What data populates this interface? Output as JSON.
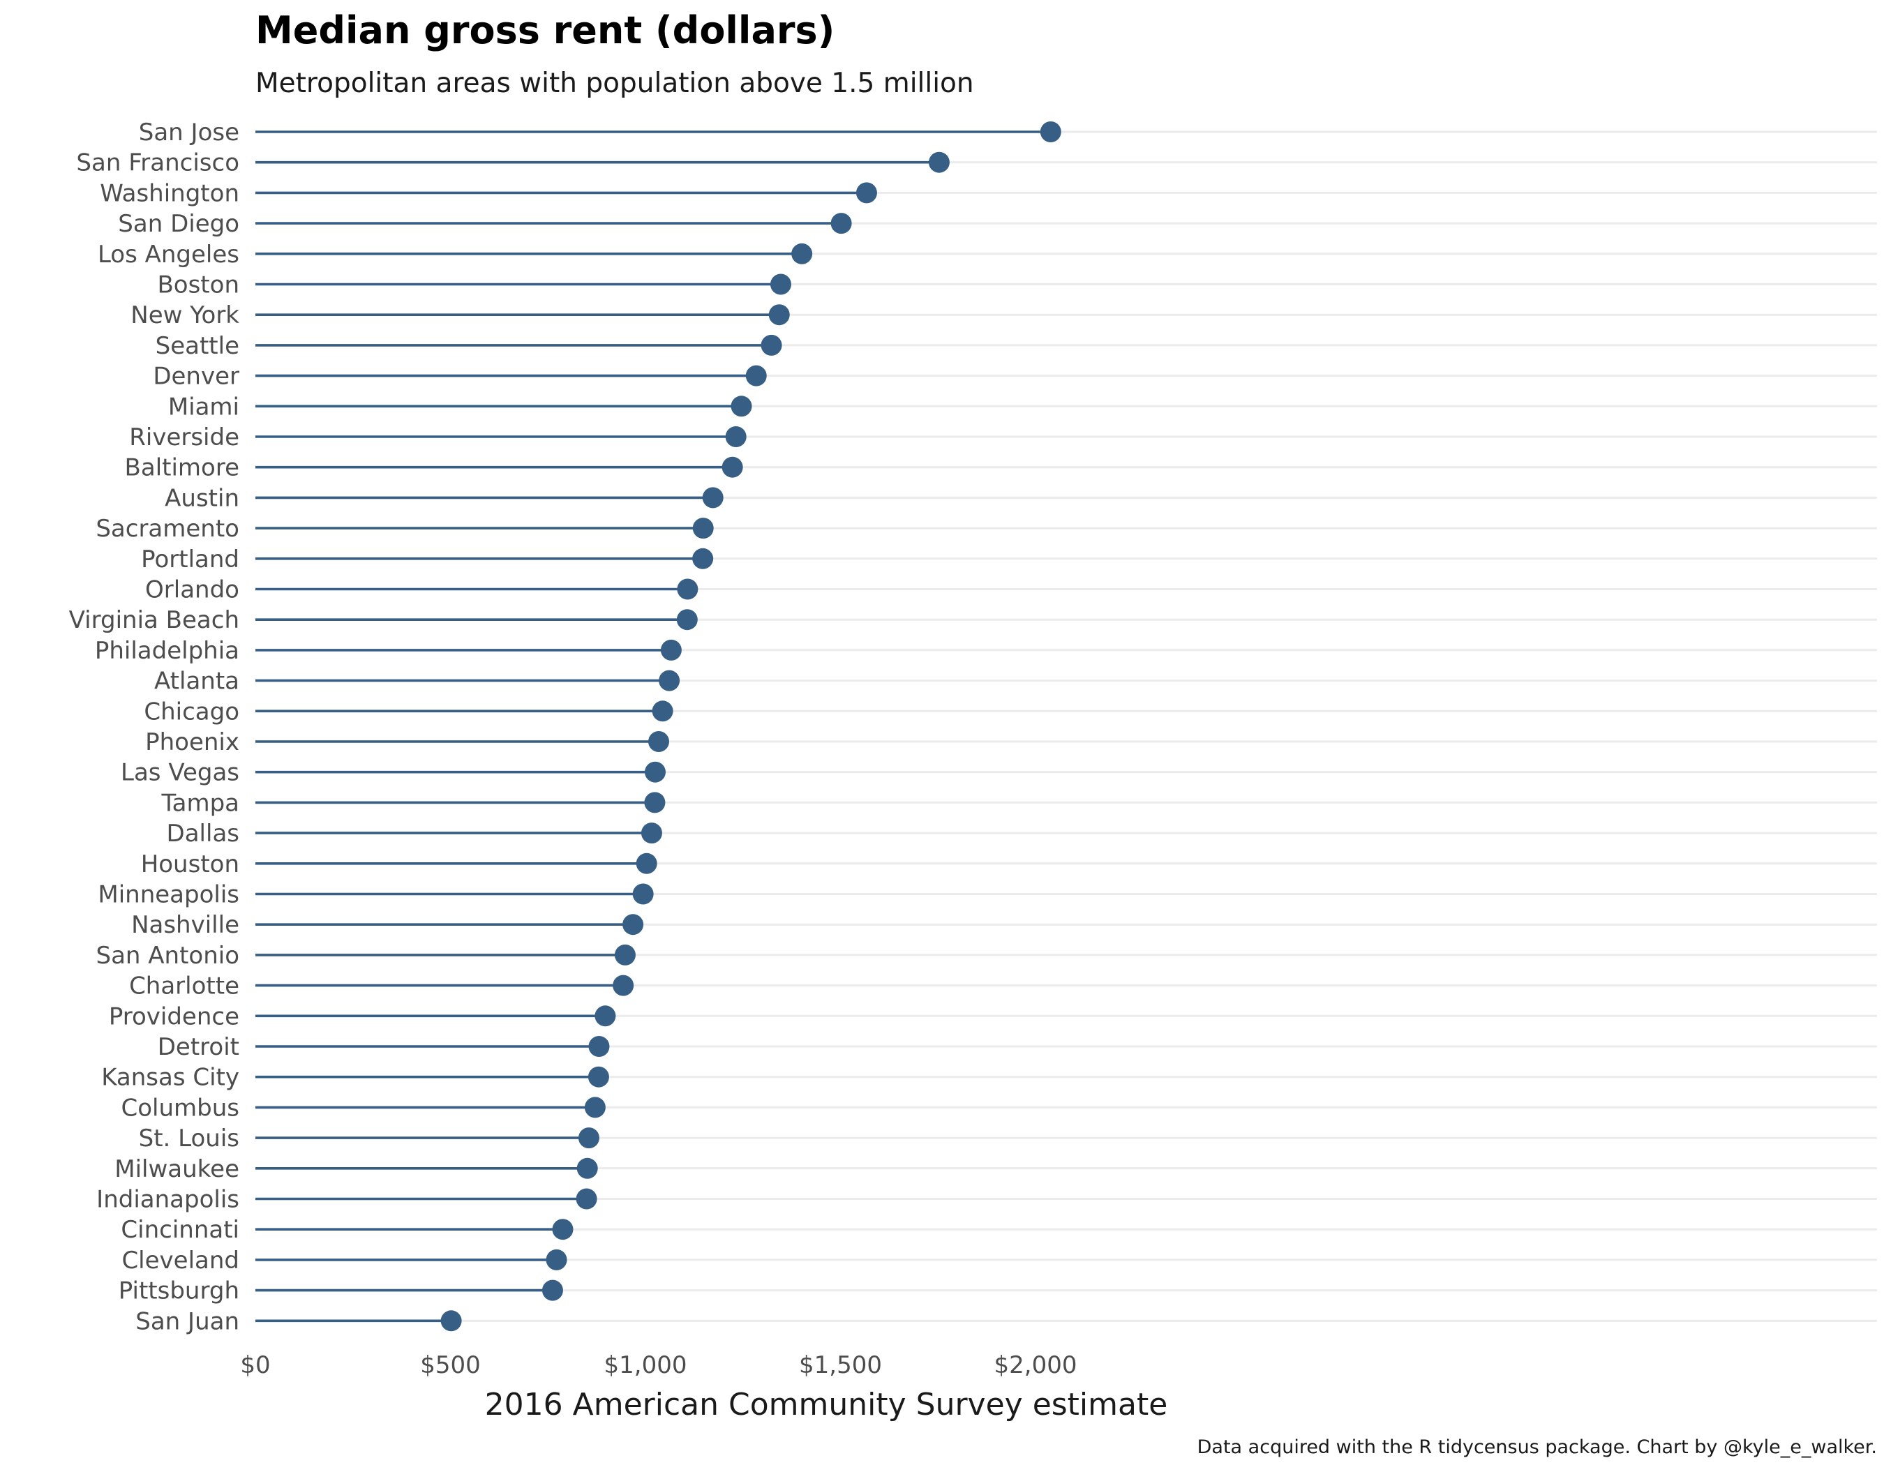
{
  "chart_data": {
    "type": "dot-plot",
    "title": "Median gross rent (dollars)",
    "subtitle": "Metropolitan areas with population above 1.5 million",
    "xlabel": "2016 American Community Survey estimate",
    "ylabel": "",
    "caption": "Data acquired with the R tidycensus package. Chart by @kyle_e_walker.",
    "xlim": [
      0,
      2075
    ],
    "x_ticks": [
      0,
      500,
      1000,
      1500,
      2000
    ],
    "x_tick_labels": [
      "$0",
      "$500",
      "$1,000",
      "$1,500",
      "$2,000"
    ],
    "grid": true,
    "legend": "none",
    "categories": [
      "San Jose",
      "San Francisco",
      "Washington",
      "San Diego",
      "Los Angeles",
      "Boston",
      "New York",
      "Seattle",
      "Denver",
      "Miami",
      "Riverside",
      "Baltimore",
      "Austin",
      "Sacramento",
      "Portland",
      "Orlando",
      "Virginia Beach",
      "Philadelphia",
      "Atlanta",
      "Chicago",
      "Phoenix",
      "Las Vegas",
      "Tampa",
      "Dallas",
      "Houston",
      "Minneapolis",
      "Nashville",
      "San Antonio",
      "Charlotte",
      "Providence",
      "Detroit",
      "Kansas City",
      "Columbus",
      "St. Louis",
      "Milwaukee",
      "Indianapolis",
      "Cincinnati",
      "Cleveland",
      "Pittsburgh",
      "San Juan"
    ],
    "values": [
      2039,
      1753,
      1567,
      1502,
      1401,
      1347,
      1343,
      1323,
      1284,
      1246,
      1232,
      1223,
      1173,
      1148,
      1147,
      1108,
      1107,
      1066,
      1061,
      1044,
      1034,
      1025,
      1024,
      1016,
      1003,
      994,
      968,
      948,
      943,
      897,
      881,
      880,
      871,
      855,
      851,
      849,
      788,
      772,
      762,
      502
    ],
    "colors": {
      "segment": "#375f85",
      "point": "#375f85",
      "grid": "#ebebeb"
    }
  }
}
